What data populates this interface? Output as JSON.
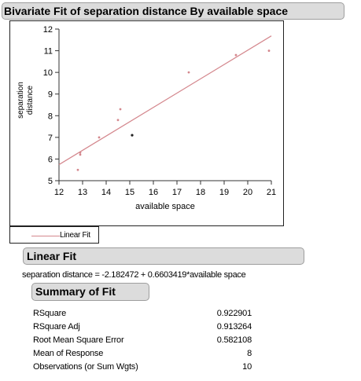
{
  "outline_title": "Bivariate Fit of separation distance By available space",
  "chart_data": {
    "type": "scatter",
    "xlabel": "available space",
    "ylabel_lines": [
      "separation",
      "distance"
    ],
    "xlim": [
      12,
      21
    ],
    "ylim": [
      5,
      12
    ],
    "x_ticks": [
      12,
      13,
      14,
      15,
      16,
      17,
      18,
      19,
      20,
      21
    ],
    "y_ticks": [
      5,
      6,
      7,
      8,
      9,
      10,
      11,
      12
    ],
    "points": [
      {
        "x": 12.8,
        "y": 5.5
      },
      {
        "x": 12.9,
        "y": 6.2
      },
      {
        "x": 12.9,
        "y": 6.3
      },
      {
        "x": 13.7,
        "y": 7.0
      },
      {
        "x": 14.5,
        "y": 7.8
      },
      {
        "x": 14.6,
        "y": 8.3
      },
      {
        "x": 15.1,
        "y": 7.1
      },
      {
        "x": 17.5,
        "y": 10.0
      },
      {
        "x": 19.5,
        "y": 10.8
      },
      {
        "x": 20.9,
        "y": 11.0
      }
    ],
    "fit": {
      "intercept": -2.182472,
      "slope": 0.6603419
    },
    "colors": {
      "fit_line": "#d4878d",
      "points": "#d4878d",
      "highlight": "#222222"
    }
  },
  "legend_label": "Linear Fit",
  "linear_fit_title": "Linear Fit",
  "equation": "separation distance = -2.182472 + 0.6603419*available space",
  "summary_title": "Summary of Fit",
  "summary_rows": [
    {
      "label": "RSquare",
      "value": "0.922901"
    },
    {
      "label": "RSquare Adj",
      "value": "0.913264"
    },
    {
      "label": "Root Mean Square Error",
      "value": "0.582108"
    },
    {
      "label": "Mean of Response",
      "value": "8"
    },
    {
      "label": "Observations (or Sum Wgts)",
      "value": "10"
    }
  ]
}
